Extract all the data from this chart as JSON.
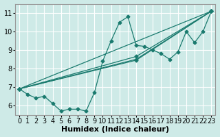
{
  "xlabel": "Humidex (Indice chaleur)",
  "bg_color": "#ceeae7",
  "grid_color": "#ffffff",
  "line_color": "#1a7a6e",
  "xlim": [
    -0.5,
    23.5
  ],
  "ylim": [
    5.5,
    11.5
  ],
  "xticks": [
    0,
    1,
    2,
    3,
    4,
    5,
    6,
    7,
    8,
    9,
    10,
    11,
    12,
    13,
    14,
    15,
    16,
    17,
    18,
    19,
    20,
    21,
    22,
    23
  ],
  "yticks": [
    6,
    7,
    8,
    9,
    10,
    11
  ],
  "main_x": [
    0,
    1,
    2,
    3,
    4,
    5,
    6,
    7,
    8,
    9,
    10,
    11,
    12,
    13,
    14,
    15,
    16,
    17,
    18,
    19,
    20,
    21,
    22,
    23
  ],
  "main_y": [
    6.9,
    6.6,
    6.4,
    6.5,
    6.1,
    5.7,
    5.8,
    5.8,
    5.7,
    6.7,
    8.4,
    9.5,
    10.5,
    10.8,
    9.25,
    9.2,
    9.0,
    8.8,
    8.5,
    8.9,
    10.0,
    9.4,
    10.0,
    11.1
  ],
  "reg_lines": [
    {
      "x": [
        0,
        23
      ],
      "y": [
        6.9,
        11.1
      ]
    },
    {
      "x": [
        0,
        14,
        23
      ],
      "y": [
        6.9,
        8.5,
        11.1
      ]
    },
    {
      "x": [
        0,
        14,
        23
      ],
      "y": [
        6.9,
        8.65,
        11.1
      ]
    },
    {
      "x": [
        0,
        14,
        23
      ],
      "y": [
        6.9,
        8.45,
        11.1
      ]
    }
  ],
  "marker": "D",
  "marker_size": 2.5,
  "line_width": 0.9,
  "font_size_ticks": 7,
  "font_size_label": 8
}
